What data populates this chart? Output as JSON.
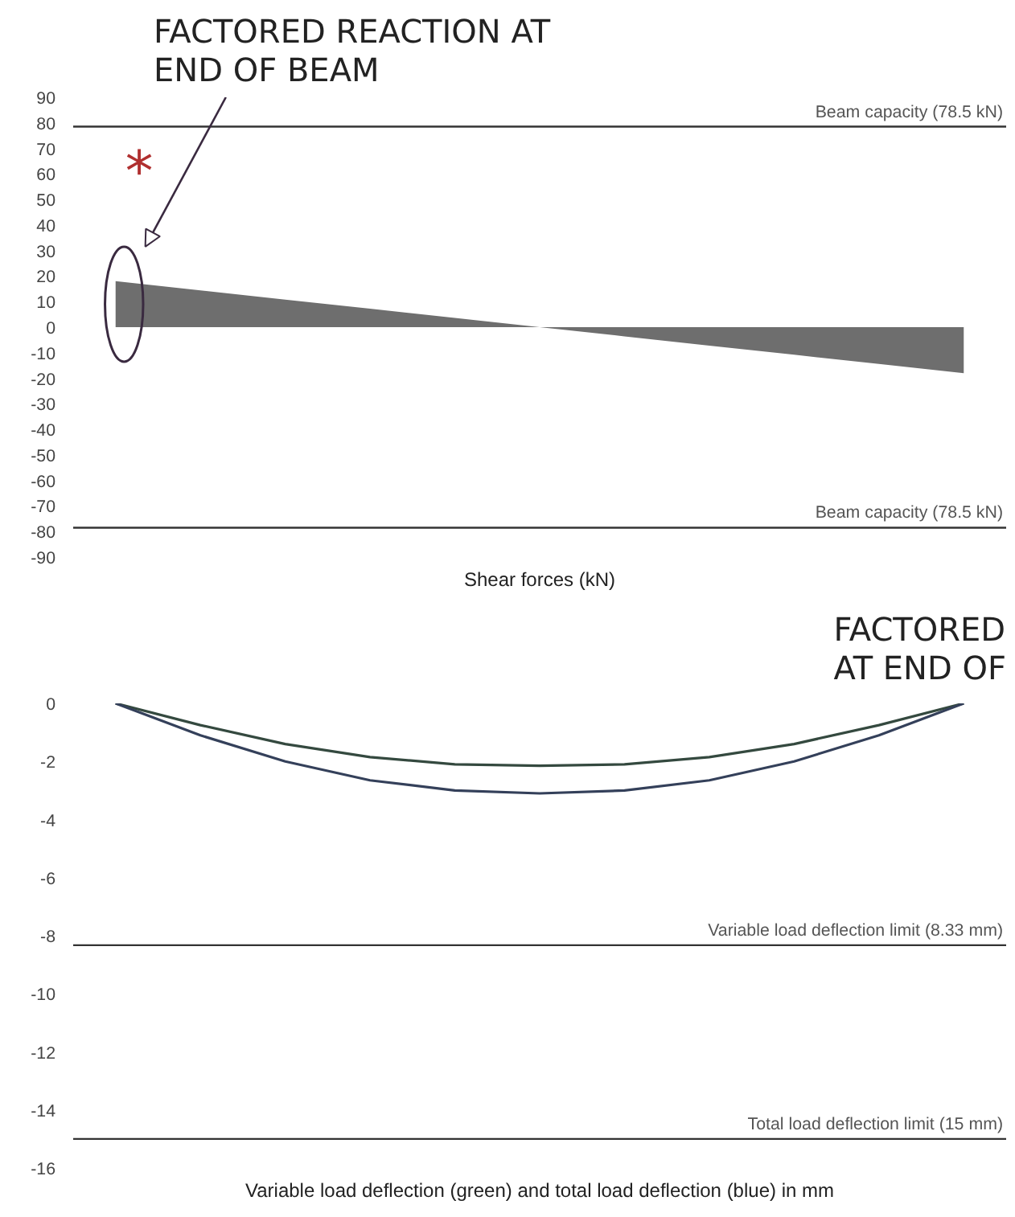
{
  "chart_data": [
    {
      "type": "area",
      "xlabel": "Shear forces (kN)",
      "categories": [
        null,
        null,
        null,
        null,
        null,
        null,
        null,
        null,
        null,
        null,
        null
      ],
      "series": [
        {
          "color": "#6e6e6e",
          "values": [
            18,
            14.4,
            10.8,
            7.2,
            3.6,
            0,
            null,
            null,
            null,
            null,
            null
          ]
        },
        {
          "color": "#6e6e6e",
          "values": [
            null,
            null,
            null,
            null,
            null,
            0,
            -3.6,
            -7.2,
            -10.8,
            -14.4,
            -18
          ]
        }
      ],
      "ylim": [
        -90,
        90
      ],
      "yticks": [
        -90,
        -80,
        -70,
        -60,
        -50,
        -40,
        -30,
        -20,
        -10,
        0,
        10,
        20,
        30,
        40,
        50,
        60,
        70,
        80,
        90
      ],
      "tick_labels": "y",
      "ref_lines": [
        {
          "axis": "y",
          "value": 78.5,
          "label": "Beam capacity (78.5 kN)",
          "color": "#333333"
        },
        {
          "axis": "y",
          "value": -78.5,
          "label": "Beam capacity (78.5 kN)",
          "color": "#333333"
        }
      ],
      "annotations": [
        "FACTORED REACTION AT\nEND OF BEAM",
        "*",
        "FACTORED\nAT END OF"
      ]
    },
    {
      "type": "line",
      "xlabel": "Variable load deflection (green) and total load deflection (blue) in mm",
      "categories": [
        null,
        null,
        null,
        null,
        null,
        null,
        null,
        null,
        null,
        null,
        null
      ],
      "series": [
        {
          "color": "#34493f",
          "values": [
            0,
            -0.75,
            -1.4,
            -1.85,
            -2.1,
            -2.15,
            -2.1,
            -1.85,
            -1.4,
            -0.75,
            0
          ]
        },
        {
          "color": "#34405a",
          "values": [
            0,
            -1.1,
            -2.0,
            -2.65,
            -3.0,
            -3.1,
            -3.0,
            -2.65,
            -2.0,
            -1.1,
            0
          ]
        }
      ],
      "ylim": [
        -16,
        0
      ],
      "yticks": [
        -16,
        -14,
        -12,
        -10,
        -8,
        -6,
        -4,
        -2,
        0
      ],
      "tick_labels": "y",
      "ref_lines": [
        {
          "axis": "y",
          "value": -8.33,
          "label": "Variable load deflection limit (8.33 mm)",
          "color": "#333333"
        },
        {
          "axis": "y",
          "value": -15,
          "label": "Total load deflection limit (15 mm)",
          "color": "#333333"
        }
      ]
    }
  ]
}
